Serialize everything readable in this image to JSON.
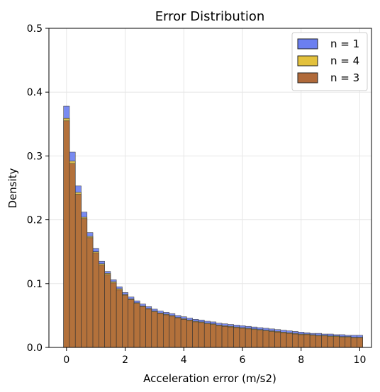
{
  "chart_data": {
    "type": "bar",
    "title": "Error Distribution",
    "xlabel": "Acceleration error (m/s2)",
    "ylabel": "Density",
    "xlim": [
      -0.6,
      10.4
    ],
    "ylim": [
      0,
      0.5
    ],
    "xticks": [
      0,
      2,
      4,
      6,
      8,
      10
    ],
    "yticks": [
      0.0,
      0.1,
      0.2,
      0.3,
      0.4,
      0.5
    ],
    "xtick_labels": [
      "0",
      "2",
      "4",
      "6",
      "8",
      "10"
    ],
    "ytick_labels": [
      "0.0",
      "0.1",
      "0.2",
      "0.3",
      "0.4",
      "0.5"
    ],
    "grid": true,
    "legend_position": "top-right",
    "bin_start": -0.1,
    "bin_width": 0.2,
    "series": [
      {
        "name": "n = 1",
        "color": "#6b7ff0",
        "values": [
          0.378,
          0.306,
          0.253,
          0.212,
          0.18,
          0.155,
          0.135,
          0.119,
          0.106,
          0.095,
          0.086,
          0.079,
          0.073,
          0.068,
          0.064,
          0.06,
          0.057,
          0.055,
          0.053,
          0.05,
          0.048,
          0.046,
          0.044,
          0.043,
          0.041,
          0.04,
          0.038,
          0.037,
          0.036,
          0.035,
          0.034,
          0.033,
          0.032,
          0.031,
          0.03,
          0.029,
          0.028,
          0.027,
          0.026,
          0.025,
          0.024,
          0.023,
          0.022,
          0.022,
          0.021,
          0.021,
          0.02,
          0.02,
          0.019,
          0.019,
          0.019
        ]
      },
      {
        "name": "n = 4",
        "color": "#e3c13c",
        "values": [
          0.359,
          0.292,
          0.243,
          0.204,
          0.174,
          0.15,
          0.131,
          0.116,
          0.103,
          0.092,
          0.083,
          0.076,
          0.07,
          0.065,
          0.061,
          0.057,
          0.054,
          0.052,
          0.05,
          0.047,
          0.045,
          0.043,
          0.041,
          0.04,
          0.038,
          0.037,
          0.035,
          0.034,
          0.033,
          0.032,
          0.031,
          0.03,
          0.029,
          0.028,
          0.027,
          0.026,
          0.025,
          0.024,
          0.023,
          0.022,
          0.021,
          0.021,
          0.02,
          0.019,
          0.019,
          0.018,
          0.018,
          0.017,
          0.017,
          0.016,
          0.016
        ]
      },
      {
        "name": "n = 3",
        "color": "#b06a3a",
        "values": [
          0.355,
          0.288,
          0.24,
          0.202,
          0.172,
          0.148,
          0.129,
          0.114,
          0.101,
          0.09,
          0.082,
          0.075,
          0.069,
          0.064,
          0.06,
          0.056,
          0.053,
          0.051,
          0.049,
          0.046,
          0.044,
          0.042,
          0.04,
          0.039,
          0.037,
          0.036,
          0.034,
          0.033,
          0.032,
          0.031,
          0.03,
          0.029,
          0.028,
          0.027,
          0.026,
          0.025,
          0.024,
          0.023,
          0.022,
          0.021,
          0.02,
          0.02,
          0.019,
          0.018,
          0.018,
          0.017,
          0.017,
          0.016,
          0.016,
          0.015,
          0.015
        ]
      }
    ]
  }
}
